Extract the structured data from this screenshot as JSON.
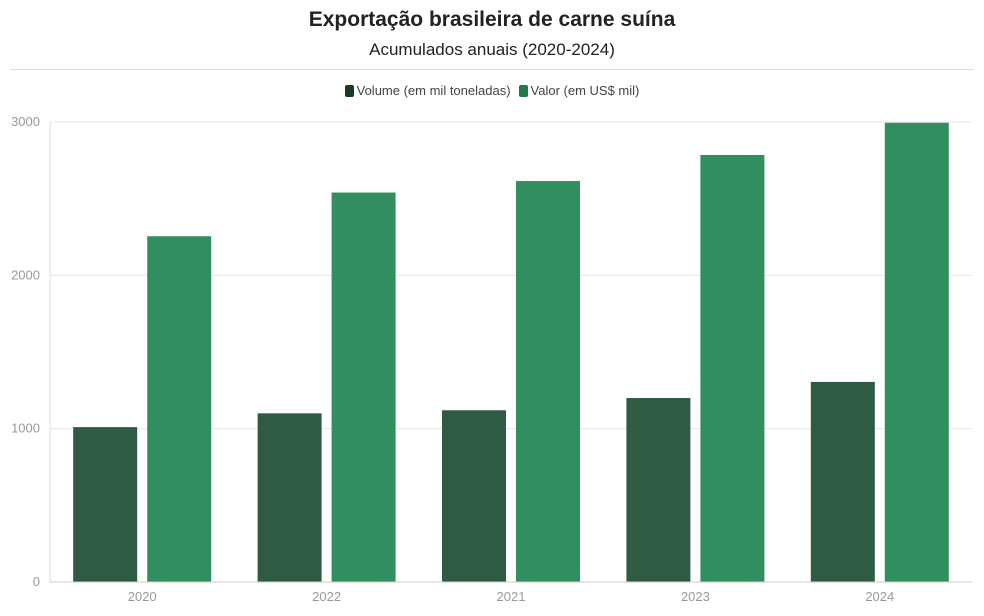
{
  "chart_data": {
    "type": "bar",
    "title": "Exportação brasileira de carne suína",
    "subtitle": "Acumulados anuais (2020-2024)",
    "categories": [
      "2020",
      "2022",
      "2021",
      "2023",
      "2024"
    ],
    "series": [
      {
        "name": "Volume (em mil toneladas)",
        "color": "#2f5b45",
        "values": [
          1010,
          1100,
          1120,
          1200,
          1305
        ]
      },
      {
        "name": "Valor (em US$ mil)",
        "color": "#318f5f",
        "values": [
          2255,
          2540,
          2615,
          2785,
          2995
        ]
      }
    ],
    "ylim": [
      0,
      3000
    ],
    "yticks": [
      0,
      1000,
      2000,
      3000
    ],
    "grid": true,
    "legend_position": "top-center"
  }
}
